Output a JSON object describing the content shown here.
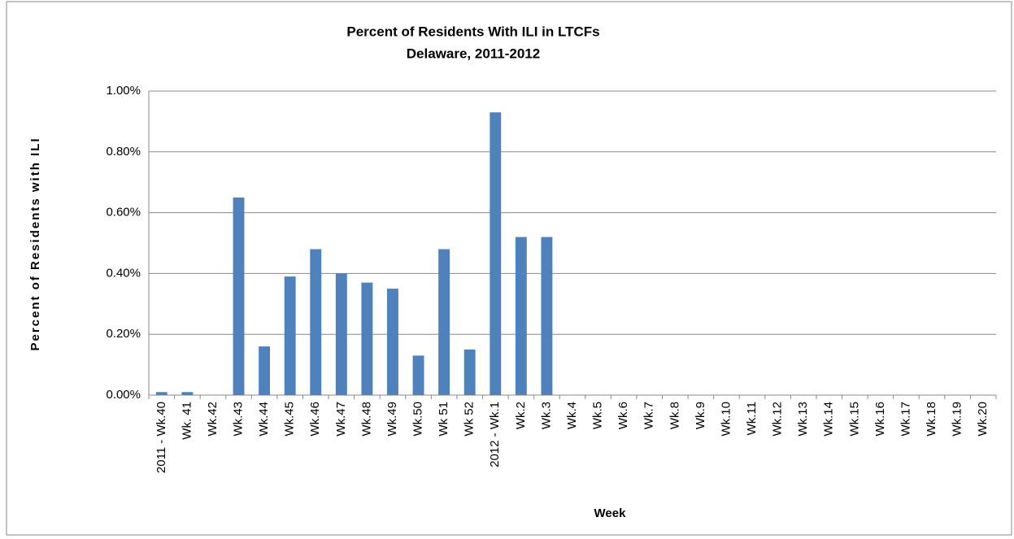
{
  "chart_data": {
    "type": "bar",
    "title": "Percent of Residents With ILI in LTCFs",
    "subtitle": "Delaware, 2011-2012",
    "x_label": "Week",
    "y_label": "Percent of Residents with ILI",
    "categories": [
      "2011 - Wk.40",
      "Wk. 41",
      "Wk.42",
      "Wk.43",
      "Wk.44",
      "Wk.45",
      "Wk.46",
      "Wk.47",
      "Wk.48",
      "Wk.49",
      "Wk.50",
      "Wk 51",
      "Wk 52",
      "2012 - Wk.1",
      "Wk.2",
      "Wk.3",
      "Wk.4",
      "Wk.5",
      "Wk.6",
      "Wk.7",
      "Wk.8",
      "Wk.9",
      "Wk.10",
      "Wk.11",
      "Wk.12",
      "Wk.13",
      "Wk.14",
      "Wk.15",
      "Wk.16",
      "Wk.17",
      "Wk.18",
      "Wk.19",
      "Wk.20"
    ],
    "values": [
      0.01,
      0.01,
      0,
      0.65,
      0.16,
      0.39,
      0.48,
      0.4,
      0.37,
      0.35,
      0.13,
      0.48,
      0.15,
      0.93,
      0.52,
      0.52,
      0,
      0,
      0,
      0,
      0,
      0,
      0,
      0,
      0,
      0,
      0,
      0,
      0,
      0,
      0,
      0,
      0
    ],
    "color": "#4f81bd",
    "ylim": [
      0,
      1
    ],
    "yticks": [
      {
        "value": 0,
        "label": "0.00%"
      },
      {
        "value": 0.2,
        "label": "0.20%"
      },
      {
        "value": 0.4,
        "label": "0.40%"
      },
      {
        "value": 0.6,
        "label": "0.60%"
      },
      {
        "value": 0.8,
        "label": "0.80%"
      },
      {
        "value": 1,
        "label": "1.00%"
      }
    ],
    "grid": true
  }
}
